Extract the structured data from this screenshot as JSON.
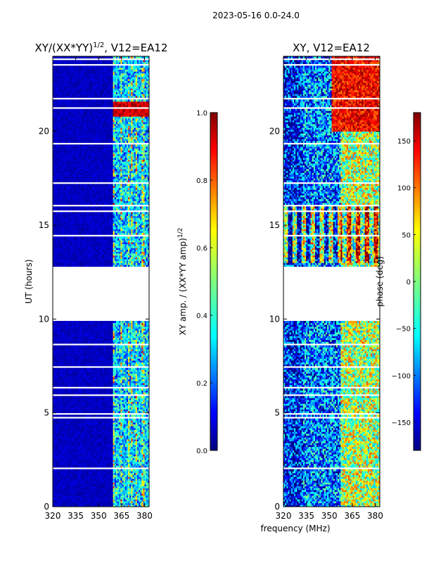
{
  "figure_title": "2023-05-16 0.0-24.0",
  "shared_xlabel": "frequency (MHz)",
  "chart_data": [
    {
      "type": "heatmap",
      "title": "XY/(XX*YY)^1/2, V12=EA12",
      "title_main": "XY/(XX*YY)",
      "title_exp": "1/2",
      "title_tail": ", V12=EA12",
      "xlabel": "",
      "ylabel": "UT (hours)",
      "xlim": [
        320,
        383
      ],
      "ylim": [
        0,
        24
      ],
      "xticks": [
        320,
        335,
        350,
        365,
        380
      ],
      "yticks": [
        0,
        5,
        10,
        15,
        20
      ],
      "gap_hours": [
        9.9,
        12.8
      ],
      "colormap": "jet",
      "colorbar": {
        "label": "XY amp. / (XX*YY amp)^1/2",
        "label_main": "XY amp. / (XX*YY amp)",
        "label_exp": "1/2",
        "vmin": 0.0,
        "vmax": 1.0,
        "ticks": [
          "0.0",
          "0.2",
          "0.4",
          "0.6",
          "0.8",
          "1.0"
        ]
      }
    },
    {
      "type": "heatmap",
      "title": "XY, V12=EA12",
      "xlabel": "frequency (MHz)",
      "ylabel": "",
      "xlim": [
        320,
        383
      ],
      "ylim": [
        0,
        24
      ],
      "xticks": [
        320,
        335,
        350,
        365,
        380
      ],
      "yticks": [
        0,
        5,
        10,
        15,
        20
      ],
      "gap_hours": [
        9.9,
        12.8
      ],
      "colormap": "jet",
      "colorbar": {
        "label": "phase (deg)",
        "vmin": -180,
        "vmax": 180,
        "ticks": [
          "−150",
          "−100",
          "−50",
          "0",
          "50",
          "100",
          "150"
        ]
      }
    }
  ],
  "colors": {
    "jet": [
      "#00007f",
      "#0000ff",
      "#007fff",
      "#00ffff",
      "#7fff7f",
      "#ffff00",
      "#ff7f00",
      "#ff0000",
      "#7f0000"
    ]
  }
}
